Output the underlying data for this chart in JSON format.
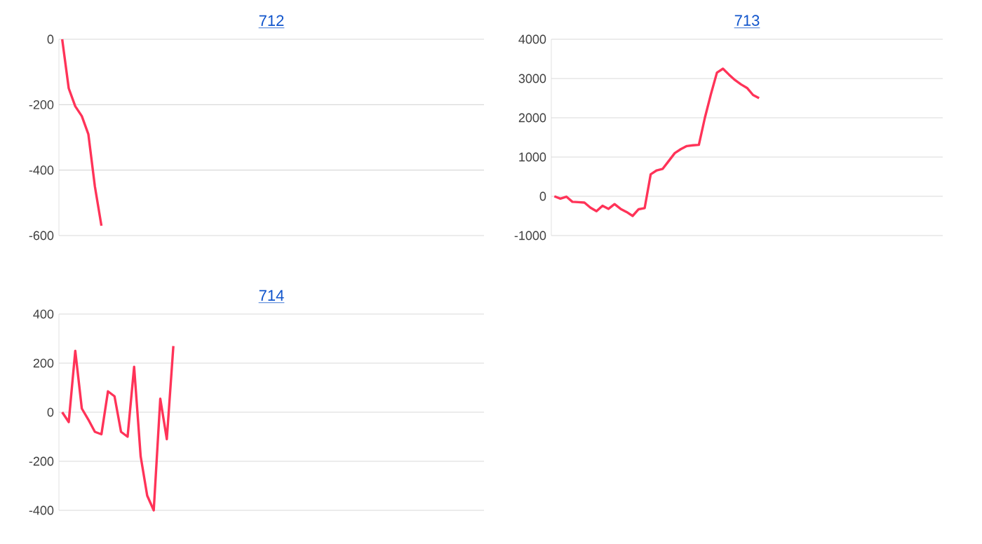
{
  "chart_data": [
    {
      "type": "line",
      "title": "712",
      "categories": [
        null,
        null,
        null,
        null,
        null,
        null,
        null,
        null,
        null,
        null,
        null,
        null,
        null,
        null,
        null,
        null,
        null,
        null,
        null,
        null,
        null,
        null,
        null,
        null,
        null,
        null,
        null,
        null,
        null,
        null,
        null,
        null,
        null,
        null,
        null,
        null,
        null,
        null,
        null,
        null,
        null,
        null,
        null,
        null,
        null,
        null,
        null,
        null,
        null,
        null,
        null,
        null,
        null,
        null,
        null,
        null,
        null,
        null,
        null,
        null,
        null,
        null,
        null,
        null,
        null
      ],
      "series": [
        {
          "color": "#ff3358",
          "values": [
            0,
            -150,
            -205,
            -235,
            -290,
            -450,
            -570,
            null,
            null,
            null,
            null,
            null,
            null,
            null,
            null,
            null,
            null,
            null,
            null,
            null,
            null,
            null,
            null,
            null,
            null,
            null,
            null,
            null,
            null,
            null,
            null,
            null,
            null,
            null,
            null,
            null,
            null,
            null,
            null,
            null,
            null,
            null,
            null,
            null,
            null,
            null,
            null,
            null,
            null,
            null,
            null,
            null,
            null,
            null,
            null,
            null,
            null,
            null,
            null,
            null,
            null,
            null,
            null,
            null,
            null
          ]
        }
      ],
      "ylim": [
        -600,
        0
      ],
      "yticks": [
        -600,
        -400,
        -200,
        0
      ],
      "grid": "y",
      "marker": "none",
      "line_style": "solid"
    },
    {
      "type": "line",
      "title": "713",
      "categories": [
        null,
        null,
        null,
        null,
        null,
        null,
        null,
        null,
        null,
        null,
        null,
        null,
        null,
        null,
        null,
        null,
        null,
        null,
        null,
        null,
        null,
        null,
        null,
        null,
        null,
        null,
        null,
        null,
        null,
        null,
        null,
        null,
        null,
        null,
        null,
        null,
        null,
        null,
        null,
        null,
        null,
        null,
        null,
        null,
        null,
        null,
        null,
        null,
        null,
        null,
        null,
        null,
        null,
        null,
        null,
        null,
        null,
        null,
        null,
        null,
        null,
        null,
        null,
        null,
        null
      ],
      "series": [
        {
          "color": "#ff3358",
          "values": [
            0,
            -60,
            -10,
            -140,
            -150,
            -160,
            -290,
            -380,
            -240,
            -320,
            -200,
            -320,
            -400,
            -500,
            -330,
            -300,
            560,
            660,
            700,
            900,
            1100,
            1200,
            1280,
            1300,
            1310,
            2000,
            2600,
            3150,
            3250,
            3100,
            2960,
            2850,
            2760,
            2580,
            2500,
            null,
            null,
            null,
            null,
            null,
            null,
            null,
            null,
            null,
            null,
            null,
            null,
            null,
            null,
            null,
            null,
            null,
            null,
            null,
            null,
            null,
            null,
            null,
            null,
            null,
            null,
            null,
            null,
            null,
            null
          ]
        }
      ],
      "ylim": [
        -1000,
        4000
      ],
      "yticks": [
        -1000,
        0,
        1000,
        2000,
        3000,
        4000
      ],
      "grid": "y",
      "marker": "none",
      "line_style": "solid"
    },
    {
      "type": "line",
      "title": "714",
      "categories": [
        null,
        null,
        null,
        null,
        null,
        null,
        null,
        null,
        null,
        null,
        null,
        null,
        null,
        null,
        null,
        null,
        null,
        null,
        null,
        null,
        null,
        null,
        null,
        null,
        null,
        null,
        null,
        null,
        null,
        null,
        null,
        null,
        null,
        null,
        null,
        null,
        null,
        null,
        null,
        null,
        null,
        null,
        null,
        null,
        null,
        null,
        null,
        null,
        null,
        null,
        null,
        null,
        null,
        null,
        null,
        null,
        null,
        null,
        null,
        null,
        null,
        null,
        null,
        null,
        null
      ],
      "series": [
        {
          "color": "#ff3358",
          "values": [
            0,
            -40,
            250,
            15,
            -30,
            -80,
            -90,
            85,
            65,
            -80,
            -100,
            185,
            -180,
            -340,
            -400,
            55,
            -110,
            270,
            null,
            null,
            null,
            null,
            null,
            null,
            null,
            null,
            null,
            null,
            null,
            null,
            null,
            null,
            null,
            null,
            null,
            null,
            null,
            null,
            null,
            null,
            null,
            null,
            null,
            null,
            null,
            null,
            null,
            null,
            null,
            null,
            null,
            null,
            null,
            null,
            null,
            null,
            null,
            null,
            null,
            null,
            null,
            null,
            null,
            null,
            null
          ]
        }
      ],
      "ylim": [
        -400,
        400
      ],
      "yticks": [
        -400,
        -200,
        0,
        200,
        400
      ],
      "grid": "y",
      "marker": "none",
      "line_style": "solid"
    }
  ]
}
